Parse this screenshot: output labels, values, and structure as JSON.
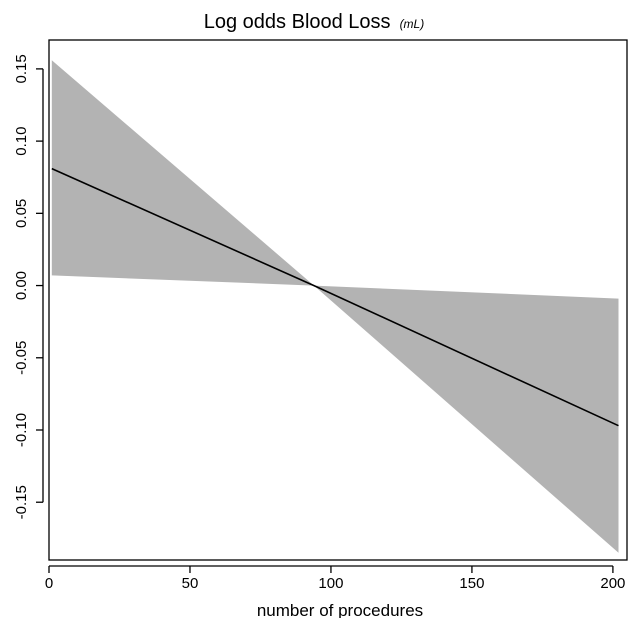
{
  "chart_data": {
    "type": "line",
    "title": "Log odds Blood Loss",
    "title_unit": "(mL)",
    "xlabel": "number of procedures",
    "ylabel": "",
    "xlim": [
      0,
      205
    ],
    "ylim": [
      -0.19,
      0.17
    ],
    "x_ticks": [
      0,
      50,
      100,
      150,
      200
    ],
    "x_tick_labels": [
      "0",
      "50",
      "100",
      "150",
      "200"
    ],
    "y_ticks": [
      -0.15,
      -0.1,
      -0.05,
      0.0,
      0.05,
      0.1,
      0.15
    ],
    "y_tick_labels": [
      "-0.15",
      "-0.10",
      "-0.05",
      "0.00",
      "0.05",
      "0.10",
      "0.15"
    ],
    "grid": false,
    "series": [
      {
        "type": "line",
        "x": [
          1,
          94,
          202
        ],
        "y": [
          0.081,
          0.0,
          -0.097
        ],
        "color": "#000000"
      }
    ],
    "confidence_band": {
      "x": [
        1,
        94,
        202
      ],
      "upper": [
        0.156,
        0.0,
        -0.009
      ],
      "lower": [
        0.007,
        0.0,
        -0.185
      ],
      "color": "#b3b3b3"
    }
  }
}
